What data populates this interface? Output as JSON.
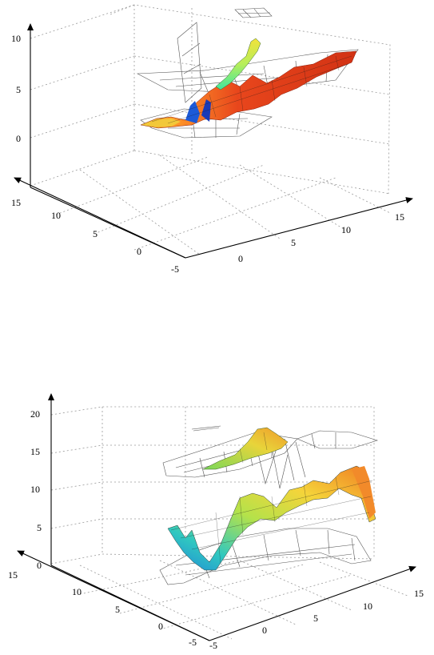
{
  "chart_data": [
    {
      "type": "surface3d",
      "axes": {
        "x": {
          "ticks": [
            "-5",
            "0",
            "5",
            "10",
            "15"
          ]
        },
        "y": {
          "ticks": [
            "-5",
            "0",
            "5",
            "10",
            "15"
          ]
        },
        "z": {
          "ticks": [
            "0",
            "5",
            "10"
          ]
        }
      },
      "colormap": "jet",
      "grid": true
    },
    {
      "type": "surface3d",
      "axes": {
        "x": {
          "ticks": [
            "-5",
            "0",
            "5",
            "10",
            "15"
          ]
        },
        "y": {
          "ticks": [
            "-5",
            "0",
            "5",
            "10",
            "15"
          ]
        },
        "z": {
          "ticks": [
            "0",
            "5",
            "10",
            "15",
            "20"
          ]
        }
      },
      "colormap": "jet",
      "grid": true
    }
  ]
}
